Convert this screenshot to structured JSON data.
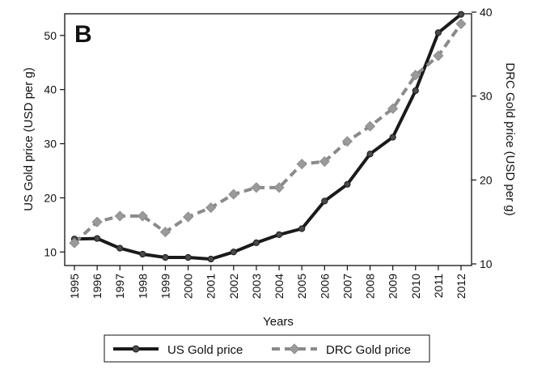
{
  "chart_data": {
    "type": "line",
    "panel_label": "B",
    "xlabel": "Years",
    "ylabel": "US Gold price (USD per g)",
    "y2label": "DRC Gold price (USD per g)",
    "ylim": [
      7.5,
      54
    ],
    "y2lim": [
      10,
      40
    ],
    "yticks": [
      10,
      20,
      30,
      40,
      50
    ],
    "y2ticks": [
      10,
      20,
      30,
      40
    ],
    "grid": false,
    "legend_position": "bottom",
    "x": [
      "1995",
      "1996",
      "1997",
      "1998",
      "1999",
      "2000",
      "2001",
      "2002",
      "2003",
      "2004",
      "2005",
      "2006",
      "2007",
      "2008",
      "2009",
      "2010",
      "2011",
      "2012"
    ],
    "series": [
      {
        "name": "US Gold price",
        "axis": "left",
        "color": "#1a1a1a",
        "style": "solid",
        "marker": "circle",
        "values": [
          12.4,
          12.5,
          10.7,
          9.6,
          9.0,
          9.0,
          8.7,
          10.0,
          11.7,
          13.2,
          14.3,
          19.4,
          22.5,
          28.1,
          31.2,
          39.8,
          50.5,
          53.9
        ]
      },
      {
        "name": "DRC Gold price",
        "axis": "right",
        "color": "#8a8a8a",
        "style": "dashed",
        "marker": "diamond",
        "values": [
          12.5,
          15.0,
          15.7,
          15.7,
          13.8,
          15.6,
          16.7,
          18.3,
          19.1,
          19.1,
          21.9,
          22.2,
          24.6,
          26.4,
          28.5,
          32.5,
          34.8,
          38.6
        ]
      }
    ]
  }
}
